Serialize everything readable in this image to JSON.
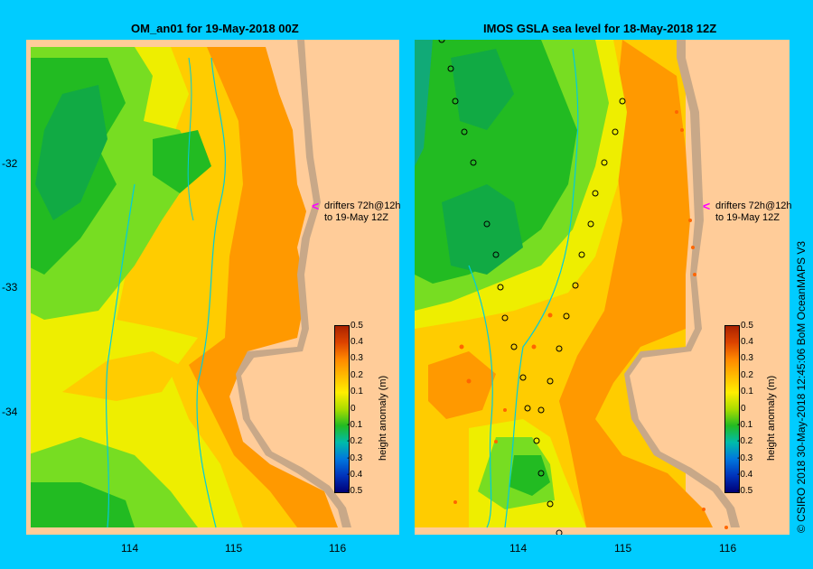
{
  "panels": [
    {
      "title": "OM_an01  for 19-May-2018 00Z"
    },
    {
      "title": "IMOS GSLA sea level  for 18-May-2018 12Z"
    }
  ],
  "y_ticks": [
    "-32",
    "-33",
    "-34"
  ],
  "x_ticks": [
    "114",
    "115",
    "116"
  ],
  "drifter_note": {
    "line1": "drifters 72h@12h",
    "line2": "to 19-May 12Z",
    "arrow": "<"
  },
  "colorbar": {
    "label": "height anomaly (m)",
    "ticks": [
      "0.5",
      "0.4",
      "0.3",
      "0.2",
      "0.1",
      "0",
      "-0.1",
      "-0.2",
      "-0.3",
      "-0.4",
      "-0.5"
    ]
  },
  "copyright": "© CSIRO 2018   30-May-2018 12:45:06 BoM OceanMAPS V3",
  "colors": {
    "background": "#00ccff",
    "land": "#ffcc99",
    "shelf": "#c8a888",
    "green": "#22bb22",
    "lightgreen": "#77dd22",
    "yellow": "#eeee00",
    "lightorange": "#ffcc00",
    "orange": "#ff9900",
    "deeporange": "#ff8800"
  }
}
